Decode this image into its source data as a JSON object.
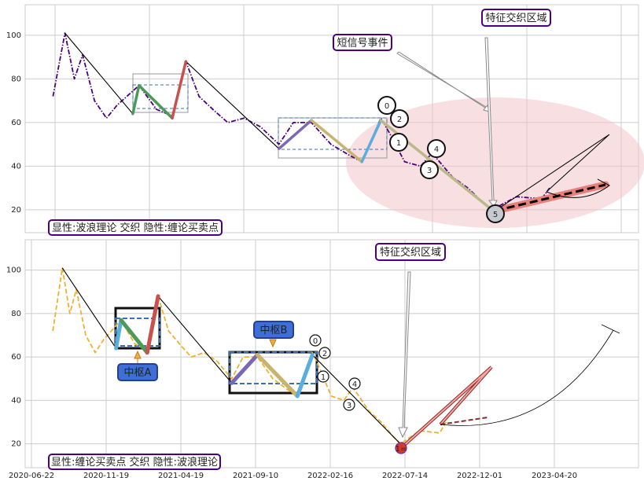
{
  "chart_data": [
    {
      "type": "line",
      "annotations": {
        "region": "特征交织区域",
        "event": "短信号事件",
        "caption": "显性:波浪理论 交织 隐性:缠论买卖点"
      },
      "wave_labels": [
        "0",
        "1",
        "2",
        "3",
        "4",
        "5"
      ],
      "ylim": [
        9.5,
        114
      ],
      "yticks": [
        20,
        40,
        60,
        80,
        100
      ],
      "grid": true,
      "series": [
        {
          "color": "#4b0082",
          "x": [
            "2020-08-04",
            "2020-08-23",
            "2020-09-07",
            "2020-09-20",
            "2020-10-09",
            "2020-10-28",
            "2020-11-14",
            "2020-12-19",
            "2021-01-16",
            "2021-02-10",
            "2021-03-04",
            "2021-03-25",
            "2021-04-20",
            "2021-05-09",
            "2021-06-03",
            "2021-06-28",
            "2021-07-26",
            "2021-08-17",
            "2021-09-14",
            "2021-10-17",
            "2021-11-17",
            "2021-12-08",
            "2022-01-09",
            "2022-01-24",
            "2022-02-18",
            "2022-03-15",
            "2022-04-02",
            "2022-05-04",
            "2022-05-28",
            "2022-06-22",
            "2022-07-05",
            "2022-08-11",
            "2022-09-17",
            "2022-09-29"
          ],
          "values": [
            72,
            101,
            80,
            91,
            70,
            62,
            68,
            77,
            66,
            63,
            88,
            72,
            65,
            60,
            62,
            58,
            50,
            60,
            60,
            50,
            45,
            42,
            62,
            55,
            42,
            40,
            46,
            35,
            30,
            23,
            20,
            26,
            25,
            30
          ]
        },
        {
          "color": "#000000",
          "x": [
            "2020-08-23",
            "2020-12-09",
            "2020-12-19",
            "2021-02-10",
            "2021-03-04",
            "2021-07-26",
            "2021-09-14",
            "2021-12-08",
            "2022-01-09",
            "2022-07-05"
          ],
          "values": [
            101,
            64,
            77,
            62,
            88,
            48,
            61,
            42,
            61,
            20
          ]
        },
        {
          "color": "#4c9a5a",
          "x": [
            "2020-12-09",
            "2020-12-19",
            "2021-02-10"
          ],
          "values": [
            64,
            77,
            62
          ]
        },
        {
          "color": "#c9504c",
          "x": [
            "2021-02-10",
            "2021-03-04"
          ],
          "values": [
            62,
            88
          ]
        },
        {
          "color": "#7b68b5",
          "x": [
            "2021-07-26",
            "2021-09-14"
          ],
          "values": [
            48,
            61
          ]
        },
        {
          "color": "#c8b46e",
          "x": [
            "2021-09-14",
            "2021-12-08"
          ],
          "values": [
            61,
            42
          ]
        },
        {
          "color": "#5aaedc",
          "x": [
            "2021-12-08",
            "2022-01-09"
          ],
          "values": [
            42,
            61
          ]
        },
        {
          "color": "#b9b98a",
          "x": [
            "2022-01-09",
            "2022-07-05"
          ],
          "values": [
            61,
            20
          ]
        }
      ]
    },
    {
      "type": "line",
      "annotations": {
        "region": "特征交织区域",
        "pivot_a": "中枢A",
        "pivot_b": "中枢B",
        "caption": "显性:缠论买卖点 交织 隐性:波浪理论"
      },
      "wave_labels": [
        "0",
        "1",
        "2",
        "3",
        "4",
        "1="
      ],
      "ylim": [
        9,
        114
      ],
      "yticks": [
        20,
        40,
        60,
        80,
        100
      ],
      "grid": true,
      "xticks": [
        "2020-06-22",
        "2020-11-19",
        "2021-04-19",
        "2021-09-10",
        "2022-02-16",
        "2022-07-14",
        "2022-12-01",
        "2023-04-20"
      ],
      "series": [
        {
          "color": "#f0b030",
          "x": [
            "2020-08-04",
            "2020-08-23",
            "2020-09-07",
            "2020-09-20",
            "2020-10-09",
            "2020-10-28",
            "2020-11-14",
            "2020-12-19",
            "2021-01-16",
            "2021-02-10",
            "2021-03-04",
            "2021-03-25",
            "2021-04-20",
            "2021-05-09",
            "2021-06-03",
            "2021-06-28",
            "2021-07-26",
            "2021-08-17",
            "2021-09-14",
            "2021-10-17",
            "2021-11-17",
            "2021-12-08",
            "2022-01-09",
            "2022-01-24",
            "2022-02-18",
            "2022-03-15",
            "2022-04-02",
            "2022-05-04",
            "2022-05-28",
            "2022-06-22",
            "2022-07-05",
            "2022-08-11",
            "2022-09-17",
            "2022-09-29"
          ],
          "values": [
            72,
            101,
            80,
            91,
            70,
            62,
            68,
            77,
            66,
            63,
            88,
            72,
            65,
            60,
            62,
            58,
            50,
            60,
            60,
            50,
            45,
            42,
            62,
            55,
            42,
            40,
            46,
            35,
            30,
            23,
            20,
            26,
            25,
            30
          ]
        },
        {
          "color": "#000000",
          "x": [
            "2020-08-23",
            "2020-12-09",
            "2020-12-19",
            "2021-02-10",
            "2021-03-04",
            "2021-07-26",
            "2021-09-14",
            "2021-12-08",
            "2022-01-09",
            "2022-07-05"
          ],
          "values": [
            101,
            64,
            77,
            62,
            88,
            48,
            61,
            42,
            61,
            20
          ]
        },
        {
          "color": "#5aaedc",
          "x": [
            "2020-12-09",
            "2020-12-19"
          ],
          "values": [
            64,
            77
          ]
        },
        {
          "color": "#4c9a5a",
          "x": [
            "2020-12-19",
            "2021-02-10"
          ],
          "values": [
            77,
            62
          ]
        },
        {
          "color": "#c9504c",
          "x": [
            "2021-02-10",
            "2021-03-04"
          ],
          "values": [
            62,
            88
          ]
        },
        {
          "color": "#7b68b5",
          "x": [
            "2021-07-26",
            "2021-09-14"
          ],
          "values": [
            48,
            61
          ]
        },
        {
          "color": "#c8b46e",
          "x": [
            "2021-09-14",
            "2021-12-08"
          ],
          "values": [
            61,
            42
          ]
        },
        {
          "color": "#5aaedc",
          "x": [
            "2021-12-08",
            "2022-01-09"
          ],
          "values": [
            42,
            61
          ]
        }
      ]
    }
  ]
}
